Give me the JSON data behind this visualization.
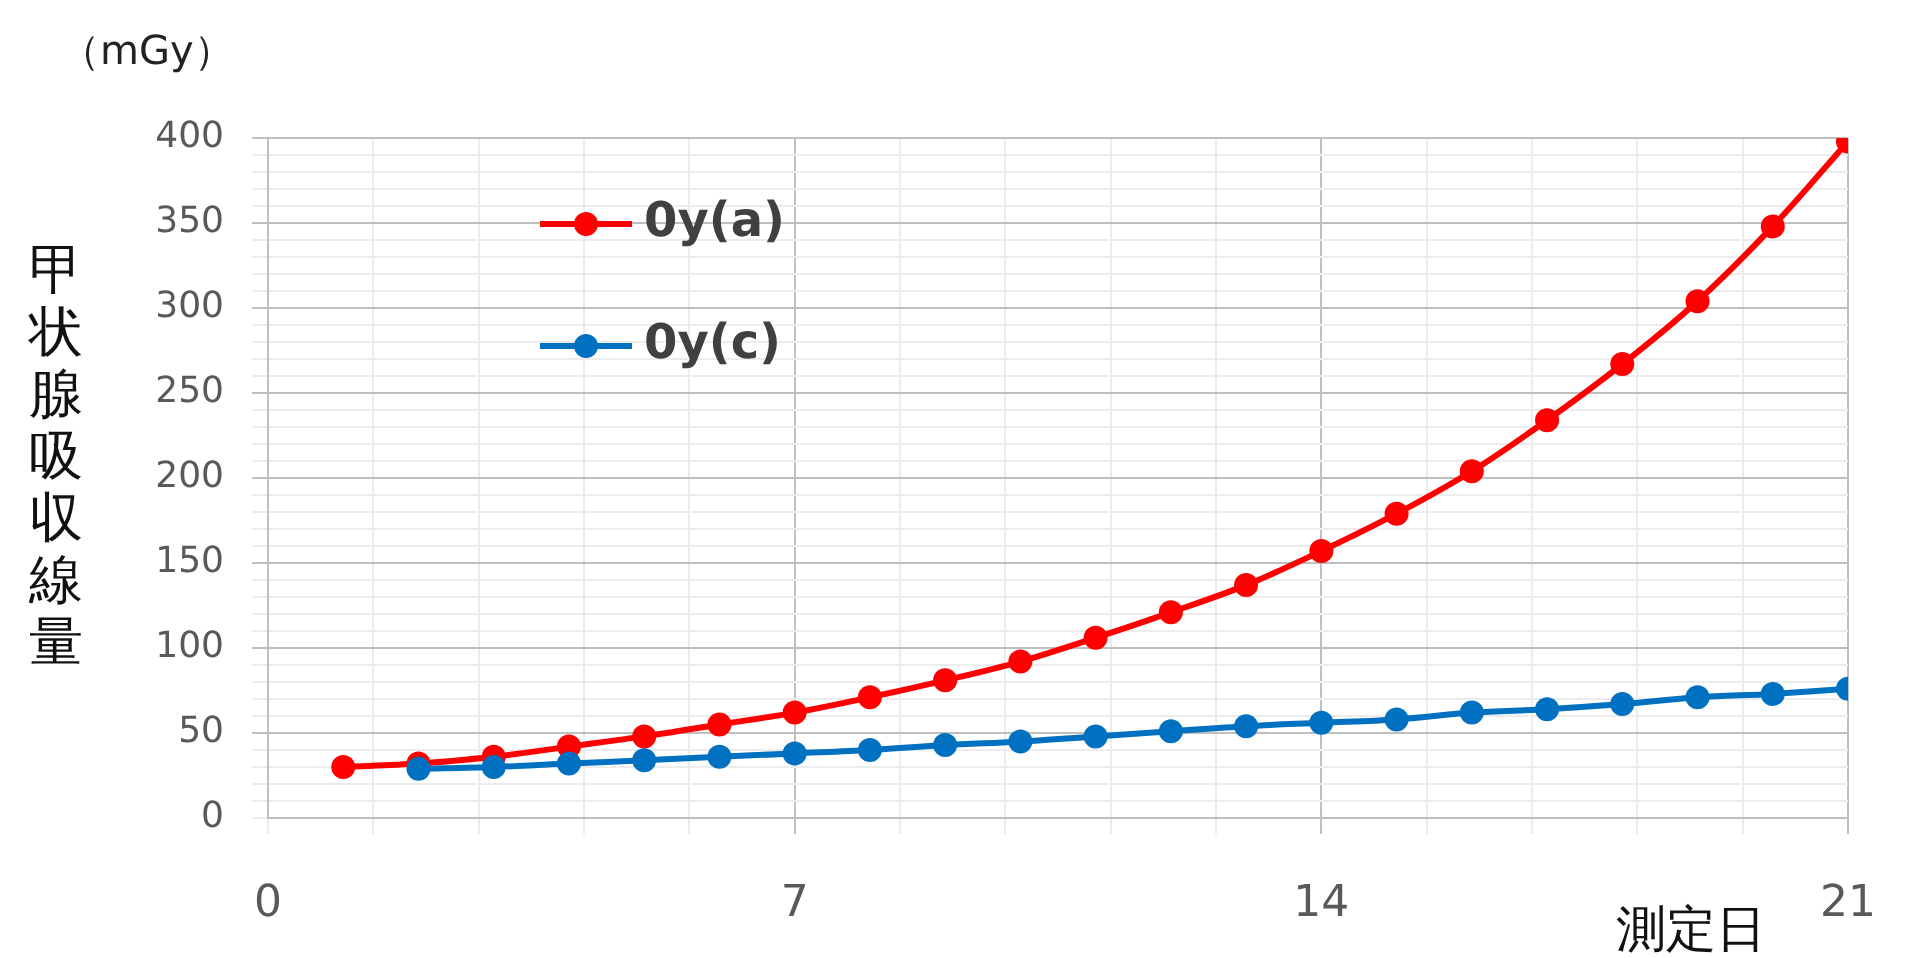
{
  "chart_data": {
    "type": "line",
    "xlabel": "測定日",
    "ylabel": "甲状腺吸収線量",
    "annotations": [
      "（mGy）"
    ],
    "xlim": [
      0,
      21
    ],
    "xticks": [
      0,
      {
        "value": 1.4,
        "label": null
      },
      {
        "value": 2.8,
        "label": null
      },
      {
        "value": 4.2,
        "label": null
      },
      {
        "value": 5.6,
        "label": null
      },
      7,
      {
        "value": 8.4,
        "label": null
      },
      {
        "value": 9.8,
        "label": null
      },
      {
        "value": 11.2,
        "label": null
      },
      {
        "value": 12.6,
        "label": null
      },
      14,
      {
        "value": 15.4,
        "label": null
      },
      {
        "value": 16.8,
        "label": null
      },
      {
        "value": 18.2,
        "label": null
      },
      {
        "value": 19.6,
        "label": null
      },
      21
    ],
    "ylim": [
      0,
      400
    ],
    "yticks": [
      0,
      {
        "value": 10,
        "label": null
      },
      {
        "value": 20,
        "label": null
      },
      {
        "value": 30,
        "label": null
      },
      {
        "value": 40,
        "label": null
      },
      50,
      {
        "value": 60,
        "label": null
      },
      {
        "value": 70,
        "label": null
      },
      {
        "value": 80,
        "label": null
      },
      {
        "value": 90,
        "label": null
      },
      100,
      {
        "value": 110,
        "label": null
      },
      {
        "value": 120,
        "label": null
      },
      {
        "value": 130,
        "label": null
      },
      {
        "value": 140,
        "label": null
      },
      150,
      {
        "value": 160,
        "label": null
      },
      {
        "value": 170,
        "label": null
      },
      {
        "value": 180,
        "label": null
      },
      {
        "value": 190,
        "label": null
      },
      200,
      {
        "value": 210,
        "label": null
      },
      {
        "value": 220,
        "label": null
      },
      {
        "value": 230,
        "label": null
      },
      {
        "value": 240,
        "label": null
      },
      250,
      {
        "value": 260,
        "label": null
      },
      {
        "value": 270,
        "label": null
      },
      {
        "value": 280,
        "label": null
      },
      {
        "value": 290,
        "label": null
      },
      300,
      {
        "value": 310,
        "label": null
      },
      {
        "value": 320,
        "label": null
      },
      {
        "value": 330,
        "label": null
      },
      {
        "value": 340,
        "label": null
      },
      350,
      {
        "value": 360,
        "label": null
      },
      {
        "value": 370,
        "label": null
      },
      {
        "value": 380,
        "label": null
      },
      {
        "value": 390,
        "label": null
      },
      400
    ],
    "grid": true,
    "legend": "top left",
    "marker": "circle",
    "line_style": "solid",
    "series": [
      {
        "name": "0y(a)",
        "color": "#ff0000",
        "x": [
          1,
          2,
          3,
          4,
          5,
          6,
          7,
          8,
          9,
          10,
          11,
          12,
          13,
          14,
          15,
          16,
          17,
          18,
          19,
          20,
          21
        ],
        "values": [
          30,
          32,
          36,
          42,
          48,
          55,
          62,
          71,
          81,
          92,
          106,
          121,
          137,
          157,
          179,
          204,
          234,
          267,
          304,
          348,
          398
        ]
      },
      {
        "name": "0y(c)",
        "color": "#0070c0",
        "x": [
          2,
          3,
          4,
          5,
          6,
          7,
          8,
          9,
          10,
          11,
          12,
          13,
          14,
          15,
          16,
          17,
          18,
          19,
          20,
          21
        ],
        "values": [
          29,
          30,
          32,
          34,
          36,
          38,
          40,
          43,
          45,
          48,
          51,
          54,
          56,
          58,
          62,
          64,
          67,
          71,
          73,
          76
        ]
      }
    ]
  }
}
